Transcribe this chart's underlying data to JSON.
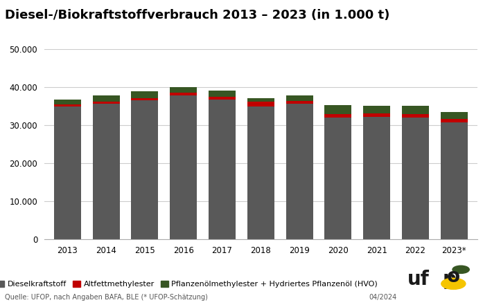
{
  "title": "Diesel-/Biokraftstoffverbrauch 2013 – 2023 (in 1.000 t)",
  "years": [
    "2013",
    "2014",
    "2015",
    "2016",
    "2017",
    "2018",
    "2019",
    "2020",
    "2021",
    "2022",
    "2023*"
  ],
  "diesel": [
    34900,
    35700,
    36500,
    37800,
    36700,
    35000,
    35700,
    32000,
    32200,
    32000,
    30800
  ],
  "altfett": [
    500,
    550,
    550,
    700,
    700,
    1200,
    600,
    900,
    900,
    900,
    950
  ],
  "pflanzen": [
    1400,
    1500,
    1900,
    1500,
    1700,
    1000,
    1500,
    2400,
    2100,
    2200,
    1750
  ],
  "colors": {
    "diesel": "#595959",
    "altfett": "#c00000",
    "pflanzen": "#375623"
  },
  "legend_labels": [
    "Dieselkraftstoff",
    "Altfettmethylester",
    "Pflanzenölmethylester + Hydriertes Pflanzenöl (HVO)"
  ],
  "ylim": [
    0,
    50000
  ],
  "yticks": [
    0,
    10000,
    20000,
    30000,
    40000,
    50000
  ],
  "ytick_labels": [
    "0",
    "10.000",
    "20.000",
    "30.000",
    "40.000",
    "50.000"
  ],
  "source_text": "Quelle: UFOP, nach Angaben BAFA, BLE (* UFOP-Schätzung)",
  "date_text": "04/2024",
  "background_color": "#ffffff",
  "title_fontsize": 13,
  "axis_fontsize": 8.5,
  "legend_fontsize": 8,
  "source_fontsize": 7
}
